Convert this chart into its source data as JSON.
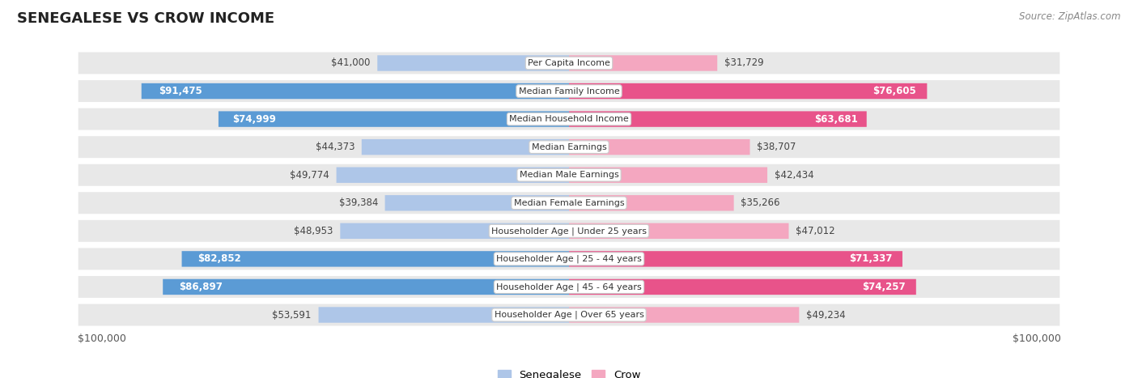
{
  "title": "SENEGALESE VS CROW INCOME",
  "source": "Source: ZipAtlas.com",
  "categories": [
    "Per Capita Income",
    "Median Family Income",
    "Median Household Income",
    "Median Earnings",
    "Median Male Earnings",
    "Median Female Earnings",
    "Householder Age | Under 25 years",
    "Householder Age | 25 - 44 years",
    "Householder Age | 45 - 64 years",
    "Householder Age | Over 65 years"
  ],
  "senegalese_values": [
    41000,
    91475,
    74999,
    44373,
    49774,
    39384,
    48953,
    82852,
    86897,
    53591
  ],
  "crow_values": [
    31729,
    76605,
    63681,
    38707,
    42434,
    35266,
    47012,
    71337,
    74257,
    49234
  ],
  "senegalese_labels": [
    "$41,000",
    "$91,475",
    "$74,999",
    "$44,373",
    "$49,774",
    "$39,384",
    "$48,953",
    "$82,852",
    "$86,897",
    "$53,591"
  ],
  "crow_labels": [
    "$31,729",
    "$76,605",
    "$63,681",
    "$38,707",
    "$42,434",
    "$35,266",
    "$47,012",
    "$71,337",
    "$74,257",
    "$49,234"
  ],
  "max_value": 100000,
  "blue_light": "#aec6e8",
  "blue_dark": "#5b9bd5",
  "pink_light": "#f4a7c0",
  "pink_dark": "#e8538a",
  "row_bg": "#e8e8e8",
  "background_color": "#ffffff",
  "label_threshold": 0.58
}
